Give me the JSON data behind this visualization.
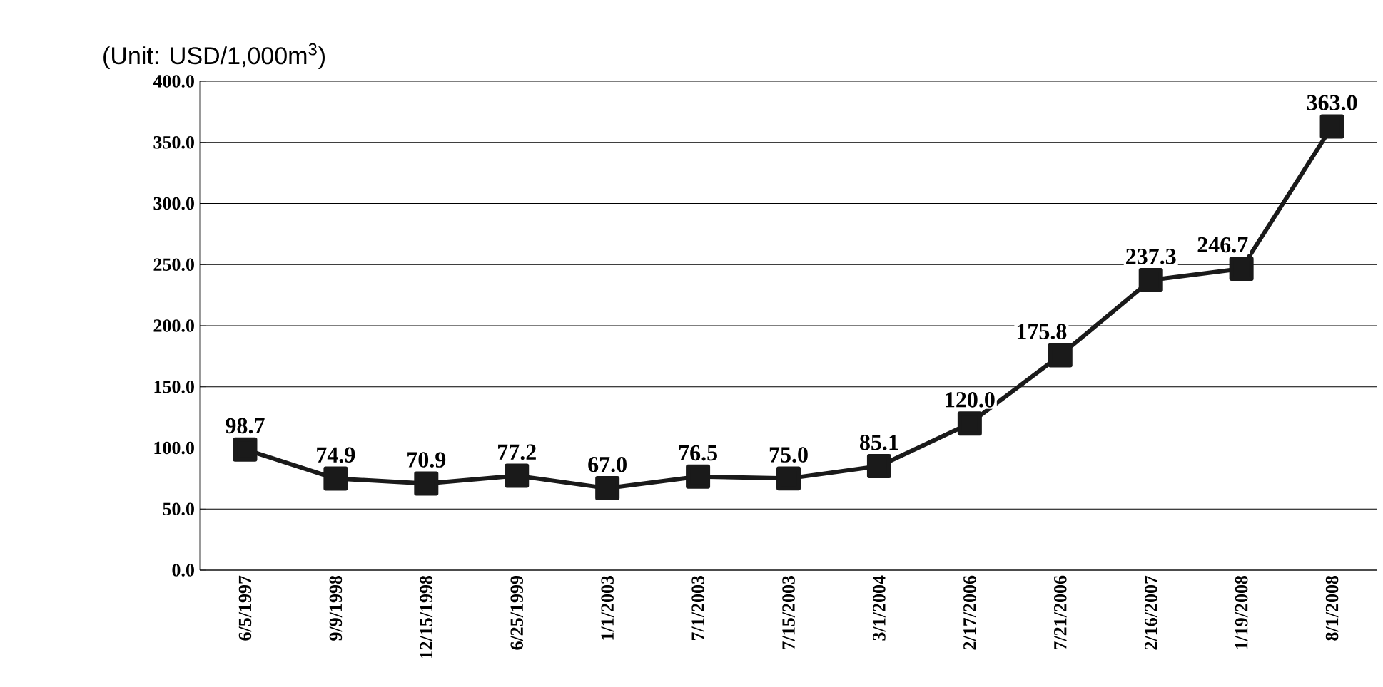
{
  "chart_data": {
    "type": "line",
    "categories": [
      "6/5/1997",
      "9/9/1998",
      "12/15/1998",
      "6/25/1999",
      "1/1/2003",
      "7/1/2003",
      "7/15/2003",
      "3/1/2004",
      "2/17/2006",
      "7/21/2006",
      "2/16/2007",
      "1/19/2008",
      "8/1/2008"
    ],
    "values": [
      98.7,
      74.9,
      70.9,
      77.2,
      67.0,
      76.5,
      75.0,
      85.1,
      120.0,
      175.8,
      237.3,
      246.7,
      363.0
    ],
    "value_labels": [
      "98.7",
      "74.9",
      "70.9",
      "77.2",
      "67.0",
      "76.5",
      "75.0",
      "85.1",
      "120.0",
      "175.8",
      "237.3",
      "246.7",
      "363.0"
    ],
    "color": "#1a1a1a",
    "marker": "square",
    "line_style": "solid",
    "grid": "y",
    "ylim": [
      0,
      400
    ],
    "yticks": [
      {
        "value": 0,
        "label": "0.0"
      },
      {
        "value": 50,
        "label": "50.0"
      },
      {
        "value": 100,
        "label": "100.0"
      },
      {
        "value": 150,
        "label": "150.0"
      },
      {
        "value": 200,
        "label": "200.0"
      },
      {
        "value": 250,
        "label": "250.0"
      },
      {
        "value": 300,
        "label": "300.0"
      },
      {
        "value": 350,
        "label": "350.0"
      },
      {
        "value": 400,
        "label": "400.0"
      }
    ],
    "annotations": [
      "(Unit: USD/1,000m$^{3}$)"
    ]
  }
}
